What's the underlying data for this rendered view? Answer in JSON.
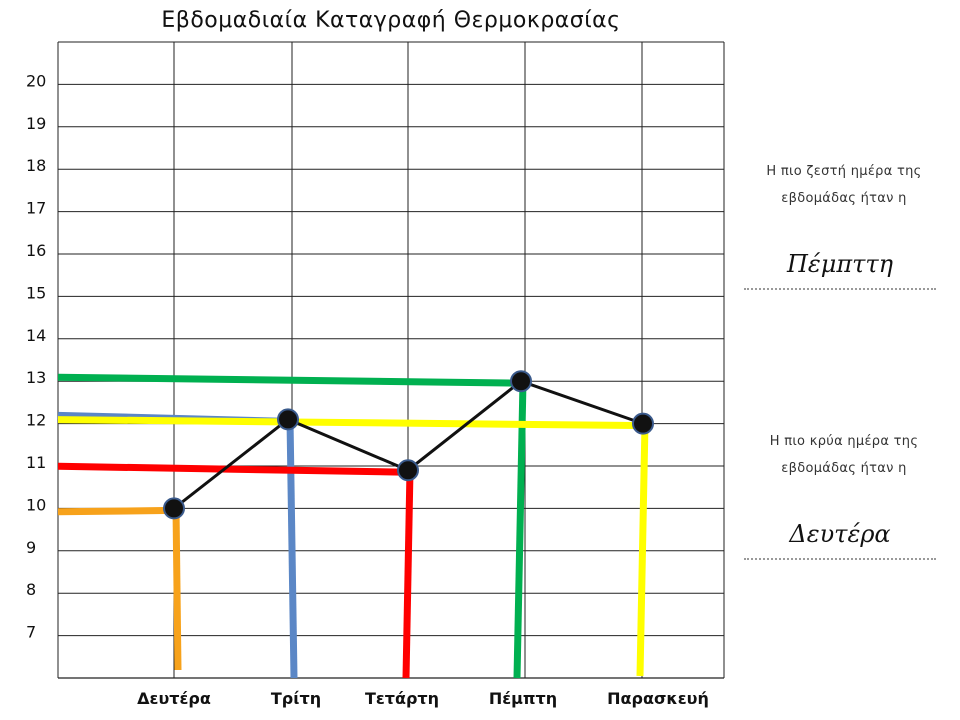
{
  "chart_data": {
    "type": "line",
    "title": "Εβδομαδιαία Καταγραφή Θερμοκρασίας",
    "categories": [
      "Δευτέρα",
      "Τρίτη",
      "Τετάρτη",
      "Πέμπτη",
      "Παρασκευή"
    ],
    "values": [
      10,
      12.1,
      10.9,
      13,
      12
    ],
    "y_ticks": [
      7,
      8,
      9,
      10,
      11,
      12,
      13,
      14,
      15,
      16,
      17,
      18,
      19,
      20
    ],
    "ylim": [
      6,
      21
    ],
    "grid": true,
    "guide_colors": [
      "#f7a21b",
      "#5b87c6",
      "#ff0000",
      "#00b050",
      "#ffff00"
    ]
  },
  "side_panel": {
    "hottest_question": "Η πιο ζεστή ημέρα της εβδομάδας ήταν η",
    "hottest_answer": "Πέμπττη",
    "coldest_question": "Η πιο κρύα ημέρα της εβδομάδας ήταν η",
    "coldest_answer": "Δευτέρα"
  }
}
